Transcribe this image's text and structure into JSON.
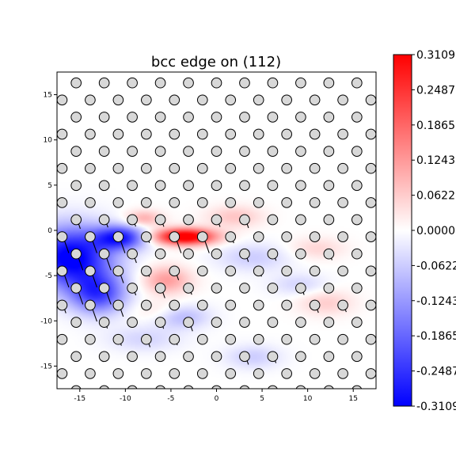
{
  "chart_data": {
    "type": "heatmap",
    "title": "bcc edge on (112)",
    "xlabel": "",
    "ylabel": "",
    "xlim": [
      -17.5,
      17.5
    ],
    "ylim": [
      -17.5,
      17.5
    ],
    "xticks": [
      -15,
      -10,
      -5,
      0,
      5,
      10,
      15
    ],
    "yticks": [
      -15,
      -10,
      -5,
      0,
      5,
      10,
      15
    ],
    "colormap": "bwr",
    "colorbar": {
      "min": -0.3109,
      "max": 0.3109,
      "ticks": [
        0.3109,
        0.2487,
        0.1865,
        0.1243,
        0.0622,
        0.0,
        -0.0622,
        -0.1243,
        -0.1865,
        -0.2487,
        -0.3109
      ],
      "tick_labels": [
        "0.3109",
        "0.2487",
        "0.1865",
        "0.1243",
        "0.0622",
        "0.0000",
        "-0.0622",
        "-0.1243",
        "-0.1865",
        "-0.2487",
        "-0.3109"
      ]
    },
    "atom_lattice": {
      "a1": [
        3.08,
        0.0
      ],
      "a2": [
        1.54,
        1.89
      ],
      "origin": [
        -15.4,
        16.3
      ],
      "radius": 0.55,
      "fill": "#d8d8d8",
      "edge": "#000000"
    },
    "fields": [
      {
        "kind": "negative",
        "x": -16,
        "y": -3,
        "sx": 4.5,
        "sy": 3.3,
        "amp": -0.33
      },
      {
        "kind": "negative",
        "x": -10.5,
        "y": -0.8,
        "sx": 2.8,
        "sy": 1.3,
        "amp": -0.26
      },
      {
        "kind": "negative",
        "x": -13,
        "y": -7,
        "sx": 3,
        "sy": 2.2,
        "amp": -0.22
      },
      {
        "kind": "positive",
        "x": -3.5,
        "y": -0.7,
        "sx": 3.3,
        "sy": 0.9,
        "amp": 0.36
      },
      {
        "kind": "positive",
        "x": -8,
        "y": 1.3,
        "sx": 2.0,
        "sy": 0.9,
        "amp": 0.1
      },
      {
        "kind": "positive",
        "x": -5.5,
        "y": -5.5,
        "sx": 2.6,
        "sy": 1.5,
        "amp": 0.12
      },
      {
        "kind": "positive",
        "x": 2,
        "y": 1.5,
        "sx": 3,
        "sy": 1.2,
        "amp": 0.07
      },
      {
        "kind": "positive",
        "x": 11,
        "y": -2,
        "sx": 3,
        "sy": 1.2,
        "amp": 0.05
      },
      {
        "kind": "positive",
        "x": 12,
        "y": -8,
        "sx": 3,
        "sy": 1.4,
        "amp": 0.06
      },
      {
        "kind": "positive",
        "x": -6,
        "y": -9,
        "sx": 3,
        "sy": 1.2,
        "amp": 0.05
      },
      {
        "kind": "negative",
        "x": -4,
        "y": -9.5,
        "sx": 3.0,
        "sy": 1.3,
        "amp": -0.1
      },
      {
        "kind": "negative",
        "x": 4,
        "y": -3,
        "sx": 4,
        "sy": 1.5,
        "amp": -0.06
      },
      {
        "kind": "negative",
        "x": 4,
        "y": -14,
        "sx": 3,
        "sy": 1.3,
        "amp": -0.06
      },
      {
        "kind": "negative",
        "x": -8,
        "y": -12,
        "sx": 4,
        "sy": 1.4,
        "amp": -0.05
      },
      {
        "kind": "negative",
        "x": 9,
        "y": -6,
        "sx": 3,
        "sy": 1.2,
        "amp": -0.05
      }
    ]
  }
}
